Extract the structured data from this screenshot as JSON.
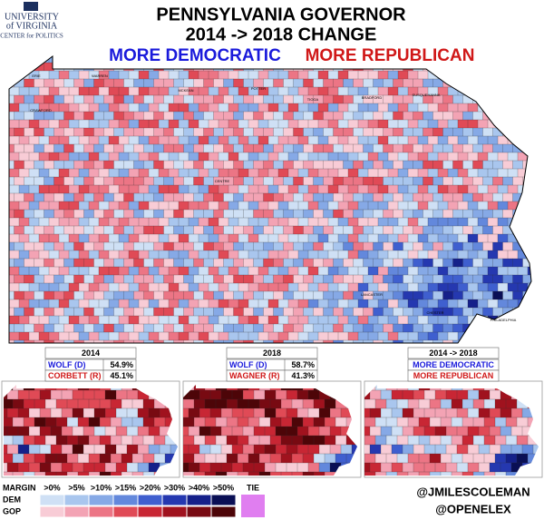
{
  "logo": {
    "line1": "UNIVERSITY",
    "line2": "of VIRGINIA",
    "line3": "CENTER for POLITICS"
  },
  "header": {
    "title": "PENNSYLVANIA GOVERNOR",
    "subtitle": "2014 -> 2018 CHANGE",
    "dem_label": "MORE DEMOCRATIC",
    "gop_label": "MORE REPUBLICAN"
  },
  "county_labels": [
    "ERIE",
    "WARREN",
    "MCKEAN",
    "POTTER",
    "TIOGA",
    "BRADFORD",
    "SUSQUEHANNA",
    "CRAWFORD",
    "CENTRE",
    "LANCASTER",
    "CHESTER",
    "PHILADELPHIA"
  ],
  "panels": [
    {
      "header": "2014",
      "rows": [
        [
          "WOLF (D)",
          "54.9%"
        ],
        [
          "CORBETT (R)",
          "45.1%"
        ]
      ]
    },
    {
      "header": "2018",
      "rows": [
        [
          "WOLF (D)",
          "58.7%"
        ],
        [
          "WAGNER (R)",
          "41.3%"
        ]
      ]
    },
    {
      "header": "2014 -> 2018",
      "rows": [
        [
          "MORE DEMOCRATIC"
        ],
        [
          "MORE REPUBLICAN"
        ]
      ]
    }
  ],
  "legend": {
    "title": "MARGIN",
    "bins": [
      ">0%",
      ">5%",
      ">10%",
      ">15%",
      ">20%",
      ">30%",
      ">40%",
      ">50%"
    ],
    "tie": "TIE",
    "dem": "DEM",
    "gop": "GOP"
  },
  "credits": [
    "@JMILESCOLEMAN",
    "@OPENELEX"
  ]
}
